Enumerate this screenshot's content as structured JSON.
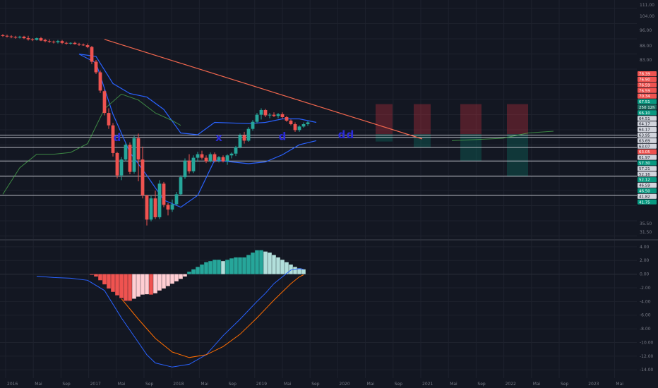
{
  "theme": {
    "background": "#131722",
    "grid": "#1e222d",
    "axis_text": "#787b86",
    "up": "#26a69a",
    "down": "#ef5350",
    "level_line": "#d1d4dc",
    "trendline": "#f2674e",
    "channel": "#2962ff",
    "sma": "#4caf50",
    "macd_line": "#2962ff",
    "signal_line": "#ff6d00",
    "hist_up_strong": "#26a69a",
    "hist_up_weak": "#b2dfdb",
    "hist_down_strong": "#ef5350",
    "hist_down_weak": "#ffcdd2",
    "loss_box": "#f23645",
    "profit_box": "#089981",
    "signal_mark": "#2b2bd6"
  },
  "chart_data": [
    {
      "type": "candlestick",
      "pane": "price",
      "ylim": [
        31,
        111
      ],
      "y_ticks": [
        "111.00",
        "104.00",
        "96.00",
        "88.00",
        "83.00",
        "35.50",
        "31.50"
      ],
      "x_ticks": [
        "2016",
        "Mai",
        "Sep",
        "2017",
        "Mai",
        "Sep",
        "2018",
        "Mai",
        "Sep",
        "2019",
        "Mai",
        "Sep",
        "2020",
        "Mai",
        "Sep",
        "2021",
        "Mai",
        "Sep",
        "2022",
        "Mai",
        "Sep",
        "2023",
        "Mai"
      ],
      "price_labels": [
        {
          "text": "78.39",
          "kind": "loss"
        },
        {
          "text": "76.90",
          "kind": "loss"
        },
        {
          "text": "76.59",
          "kind": "loss"
        },
        {
          "text": "76.59",
          "kind": "loss"
        },
        {
          "text": "70.34",
          "kind": "loss"
        },
        {
          "text": "67.51",
          "kind": "up"
        },
        {
          "text": "250 12h",
          "kind": "last"
        },
        {
          "text": "66.10",
          "kind": "up"
        },
        {
          "text": "64.51",
          "kind": "neutral"
        },
        {
          "text": "64.17",
          "kind": "neutral"
        },
        {
          "text": "64.17",
          "kind": "neutral"
        },
        {
          "text": "63.95",
          "kind": "neutral"
        },
        {
          "text": "63.69",
          "kind": "neutral"
        },
        {
          "text": "63.07",
          "kind": "neutral"
        },
        {
          "text": "63.05",
          "kind": "down"
        },
        {
          "text": "61.97",
          "kind": "neutral"
        },
        {
          "text": "57.30",
          "kind": "up"
        },
        {
          "text": "57.21",
          "kind": "neutral"
        },
        {
          "text": "52.16",
          "kind": "neutral"
        },
        {
          "text": "52.12",
          "kind": "up"
        },
        {
          "text": "46.59",
          "kind": "neutral"
        },
        {
          "text": "46.50",
          "kind": "up"
        },
        {
          "text": "41.82",
          "kind": "neutral"
        },
        {
          "text": "41.75",
          "kind": "up"
        }
      ],
      "candles": [
        {
          "o": 100.0,
          "h": 100.4,
          "l": 99.4,
          "c": 99.8
        },
        {
          "o": 99.8,
          "h": 100.2,
          "l": 99.2,
          "c": 99.6
        },
        {
          "o": 99.6,
          "h": 100.0,
          "l": 99.0,
          "c": 99.4
        },
        {
          "o": 99.4,
          "h": 99.8,
          "l": 98.8,
          "c": 99.2
        },
        {
          "o": 99.2,
          "h": 99.8,
          "l": 98.9,
          "c": 99.5
        },
        {
          "o": 99.5,
          "h": 99.8,
          "l": 98.7,
          "c": 99.0
        },
        {
          "o": 99.0,
          "h": 99.8,
          "l": 98.2,
          "c": 98.6
        },
        {
          "o": 98.6,
          "h": 99.0,
          "l": 98.0,
          "c": 98.4
        },
        {
          "o": 98.4,
          "h": 99.2,
          "l": 98.2,
          "c": 99.0
        },
        {
          "o": 99.0,
          "h": 99.4,
          "l": 98.0,
          "c": 98.2
        },
        {
          "o": 98.4,
          "h": 98.8,
          "l": 97.6,
          "c": 98.0
        },
        {
          "o": 98.0,
          "h": 98.6,
          "l": 97.4,
          "c": 97.8
        },
        {
          "o": 97.8,
          "h": 98.2,
          "l": 97.2,
          "c": 97.6
        },
        {
          "o": 97.6,
          "h": 98.4,
          "l": 97.2,
          "c": 98.0
        },
        {
          "o": 98.0,
          "h": 98.4,
          "l": 97.0,
          "c": 97.4
        },
        {
          "o": 97.4,
          "h": 97.8,
          "l": 96.8,
          "c": 97.2
        },
        {
          "o": 97.2,
          "h": 97.6,
          "l": 96.8,
          "c": 97.4
        },
        {
          "o": 97.4,
          "h": 97.8,
          "l": 96.8,
          "c": 97.0
        },
        {
          "o": 97.0,
          "h": 97.4,
          "l": 96.4,
          "c": 96.8
        },
        {
          "o": 96.8,
          "h": 97.2,
          "l": 96.4,
          "c": 96.6
        },
        {
          "o": 96.6,
          "h": 97.2,
          "l": 95.6,
          "c": 96.0
        },
        {
          "o": 96.0,
          "h": 96.4,
          "l": 90.2,
          "c": 91.0
        },
        {
          "o": 91.0,
          "h": 91.6,
          "l": 86.8,
          "c": 87.4
        },
        {
          "o": 87.4,
          "h": 88.0,
          "l": 80.4,
          "c": 81.2
        },
        {
          "o": 81.0,
          "h": 81.6,
          "l": 72.8,
          "c": 73.6
        },
        {
          "o": 73.6,
          "h": 75.2,
          "l": 68.2,
          "c": 69.4
        },
        {
          "o": 69.4,
          "h": 70.2,
          "l": 58.8,
          "c": 60.0
        },
        {
          "o": 60.0,
          "h": 60.4,
          "l": 51.4,
          "c": 52.4
        },
        {
          "o": 52.4,
          "h": 58.6,
          "l": 50.8,
          "c": 57.8
        },
        {
          "o": 57.8,
          "h": 63.4,
          "l": 57.2,
          "c": 62.8
        },
        {
          "o": 62.8,
          "h": 63.6,
          "l": 52.8,
          "c": 53.6
        },
        {
          "o": 53.6,
          "h": 65.8,
          "l": 53.0,
          "c": 65.0
        },
        {
          "o": 65.0,
          "h": 66.6,
          "l": 50.4,
          "c": 57.8
        },
        {
          "o": 57.8,
          "h": 62.2,
          "l": 44.6,
          "c": 45.6
        },
        {
          "o": 45.6,
          "h": 45.8,
          "l": 35.4,
          "c": 37.4
        },
        {
          "o": 37.4,
          "h": 45.4,
          "l": 36.8,
          "c": 44.6
        },
        {
          "o": 44.6,
          "h": 47.2,
          "l": 37.6,
          "c": 38.2
        },
        {
          "o": 38.2,
          "h": 50.8,
          "l": 37.6,
          "c": 49.6
        },
        {
          "o": 49.6,
          "h": 50.2,
          "l": 41.6,
          "c": 42.4
        },
        {
          "o": 42.4,
          "h": 43.0,
          "l": 38.8,
          "c": 40.8
        },
        {
          "o": 40.8,
          "h": 44.2,
          "l": 40.0,
          "c": 42.6
        },
        {
          "o": 42.6,
          "h": 46.8,
          "l": 42.2,
          "c": 46.0
        },
        {
          "o": 46.0,
          "h": 52.4,
          "l": 45.6,
          "c": 51.8
        },
        {
          "o": 51.8,
          "h": 58.2,
          "l": 51.2,
          "c": 57.4
        },
        {
          "o": 57.4,
          "h": 59.6,
          "l": 53.0,
          "c": 53.8
        },
        {
          "o": 53.8,
          "h": 59.2,
          "l": 53.2,
          "c": 58.4
        },
        {
          "o": 58.4,
          "h": 60.4,
          "l": 57.0,
          "c": 59.6
        },
        {
          "o": 59.6,
          "h": 60.8,
          "l": 57.8,
          "c": 58.4
        },
        {
          "o": 58.4,
          "h": 59.2,
          "l": 56.6,
          "c": 57.2
        },
        {
          "o": 57.2,
          "h": 60.2,
          "l": 56.8,
          "c": 59.6
        },
        {
          "o": 59.6,
          "h": 60.2,
          "l": 56.8,
          "c": 57.4
        },
        {
          "o": 57.4,
          "h": 59.0,
          "l": 56.8,
          "c": 58.6
        },
        {
          "o": 58.6,
          "h": 59.2,
          "l": 56.8,
          "c": 57.2
        },
        {
          "o": 57.2,
          "h": 59.6,
          "l": 56.0,
          "c": 59.2
        },
        {
          "o": 59.2,
          "h": 60.2,
          "l": 58.2,
          "c": 59.8
        },
        {
          "o": 59.8,
          "h": 62.4,
          "l": 59.0,
          "c": 62.0
        },
        {
          "o": 62.0,
          "h": 66.6,
          "l": 61.6,
          "c": 66.0
        },
        {
          "o": 66.0,
          "h": 67.2,
          "l": 63.2,
          "c": 64.2
        },
        {
          "o": 64.2,
          "h": 68.8,
          "l": 63.8,
          "c": 68.2
        },
        {
          "o": 68.2,
          "h": 71.2,
          "l": 67.6,
          "c": 70.6
        },
        {
          "o": 70.6,
          "h": 73.6,
          "l": 70.0,
          "c": 73.0
        },
        {
          "o": 73.0,
          "h": 75.2,
          "l": 71.4,
          "c": 74.6
        },
        {
          "o": 74.6,
          "h": 75.0,
          "l": 72.2,
          "c": 72.8
        },
        {
          "o": 72.8,
          "h": 73.6,
          "l": 71.8,
          "c": 73.0
        },
        {
          "o": 73.0,
          "h": 73.8,
          "l": 72.2,
          "c": 72.6
        },
        {
          "o": 72.6,
          "h": 73.6,
          "l": 71.8,
          "c": 73.2
        },
        {
          "o": 73.2,
          "h": 73.8,
          "l": 71.6,
          "c": 72.2
        },
        {
          "o": 72.2,
          "h": 72.6,
          "l": 70.6,
          "c": 71.0
        },
        {
          "o": 71.0,
          "h": 71.4,
          "l": 69.4,
          "c": 69.8
        },
        {
          "o": 69.8,
          "h": 70.4,
          "l": 67.2,
          "c": 67.8
        },
        {
          "o": 67.8,
          "h": 69.4,
          "l": 67.2,
          "c": 69.0
        },
        {
          "o": 69.0,
          "h": 70.4,
          "l": 68.6,
          "c": 69.8
        },
        {
          "o": 69.8,
          "h": 70.8,
          "l": 69.2,
          "c": 70.4
        }
      ],
      "trendline": {
        "from": [
          24,
          98.6
        ],
        "to": [
          99,
          64.8
        ]
      },
      "levels": [
        66.1,
        65.3,
        61.9,
        57.3,
        52.1,
        45.6
      ],
      "channel_upper": [
        [
          18,
          93.6
        ],
        [
          22,
          92.8
        ],
        [
          26,
          83.6
        ],
        [
          30,
          80.2
        ],
        [
          34,
          79.0
        ],
        [
          38,
          74.8
        ],
        [
          42,
          66.8
        ],
        [
          46,
          66.2
        ],
        [
          50,
          70.4
        ],
        [
          54,
          70.2
        ],
        [
          58,
          70.0
        ],
        [
          62,
          70.4
        ],
        [
          66,
          71.6
        ],
        [
          70,
          71.6
        ],
        [
          74,
          70.4
        ]
      ],
      "channel_lower": [
        [
          18,
          93.6
        ],
        [
          22,
          90.6
        ],
        [
          26,
          73.2
        ],
        [
          30,
          60.2
        ],
        [
          34,
          52.4
        ],
        [
          38,
          44.0
        ],
        [
          42,
          41.6
        ],
        [
          46,
          45.6
        ],
        [
          50,
          57.6
        ],
        [
          54,
          57.0
        ],
        [
          58,
          56.4
        ],
        [
          62,
          57.0
        ],
        [
          66,
          59.4
        ],
        [
          70,
          62.8
        ],
        [
          74,
          64.2
        ]
      ],
      "sma": [
        [
          0,
          46.0
        ],
        [
          4,
          55.0
        ],
        [
          8,
          59.6
        ],
        [
          12,
          59.6
        ],
        [
          16,
          60.2
        ],
        [
          20,
          63.2
        ],
        [
          24,
          75.0
        ],
        [
          28,
          80.0
        ],
        [
          32,
          78.0
        ],
        [
          36,
          73.6
        ],
        [
          40,
          71.0
        ],
        [
          42,
          69.4
        ]
      ],
      "sma_projection": [
        [
          106,
          64.2
        ],
        [
          112,
          64.6
        ],
        [
          118,
          65.0
        ],
        [
          124,
          66.8
        ],
        [
          130,
          67.4
        ]
      ],
      "signal_marks": [
        {
          "i": 27,
          "y": 65.2,
          "symbol": "d"
        },
        {
          "i": 51,
          "y": 65.2,
          "symbol": "x"
        },
        {
          "i": 66,
          "y": 65.6,
          "symbol": "d"
        },
        {
          "i": 80,
          "y": 66.2,
          "symbol": "d"
        },
        {
          "i": 82,
          "y": 66.2,
          "symbol": "d"
        }
      ],
      "position_boxes": [
        {
          "x0": 88,
          "x1": 92,
          "entry": 66.4,
          "stop": 76.6,
          "target": 63.9
        },
        {
          "x0": 97,
          "x1": 101,
          "entry": 66.4,
          "stop": 76.6,
          "target": 61.9
        },
        {
          "x0": 108,
          "x1": 113,
          "entry": 66.4,
          "stop": 76.6,
          "target": 57.3
        },
        {
          "x0": 119,
          "x1": 124,
          "entry": 66.4,
          "stop": 76.6,
          "target": 52.1
        }
      ],
      "x_domain": [
        0,
        150
      ]
    },
    {
      "type": "bar",
      "pane": "macd",
      "ylim": [
        -14.6,
        4.6
      ],
      "y_ticks": [
        4.0,
        2.0,
        0.0,
        -2.0,
        -4.0,
        -6.0,
        -8.0,
        -10.0,
        -12.0,
        -14.0
      ],
      "y_tick_labels": [
        "4.00",
        "2.00",
        "0.00",
        "-2.00",
        "-4.00",
        "-6.00",
        "-8.00",
        "-10.00",
        "-12.00",
        "-14.00"
      ],
      "histogram": [
        {
          "i": 21,
          "v": -0.1
        },
        {
          "i": 22,
          "v": -0.35
        },
        {
          "i": 23,
          "v": -0.9
        },
        {
          "i": 24,
          "v": -1.5
        },
        {
          "i": 25,
          "v": -2.1
        },
        {
          "i": 26,
          "v": -2.6
        },
        {
          "i": 27,
          "v": -3.1
        },
        {
          "i": 28,
          "v": -3.5
        },
        {
          "i": 29,
          "v": -3.9
        },
        {
          "i": 30,
          "v": -3.9
        },
        {
          "i": 31,
          "v": -3.6
        },
        {
          "i": 32,
          "v": -3.3
        },
        {
          "i": 33,
          "v": -3.0
        },
        {
          "i": 34,
          "v": -2.95
        },
        {
          "i": 35,
          "v": -3.0
        },
        {
          "i": 36,
          "v": -2.8
        },
        {
          "i": 37,
          "v": -2.4
        },
        {
          "i": 38,
          "v": -2.1
        },
        {
          "i": 39,
          "v": -1.75
        },
        {
          "i": 40,
          "v": -1.4
        },
        {
          "i": 41,
          "v": -1.05
        },
        {
          "i": 42,
          "v": -0.7
        },
        {
          "i": 43,
          "v": -0.35
        },
        {
          "i": 44,
          "v": 0.35
        },
        {
          "i": 45,
          "v": 0.7
        },
        {
          "i": 46,
          "v": 1.05
        },
        {
          "i": 47,
          "v": 1.4
        },
        {
          "i": 48,
          "v": 1.75
        },
        {
          "i": 49,
          "v": 1.9
        },
        {
          "i": 50,
          "v": 2.1
        },
        {
          "i": 51,
          "v": 2.1
        },
        {
          "i": 52,
          "v": 1.9
        },
        {
          "i": 53,
          "v": 2.1
        },
        {
          "i": 54,
          "v": 2.3
        },
        {
          "i": 55,
          "v": 2.45
        },
        {
          "i": 56,
          "v": 2.45
        },
        {
          "i": 57,
          "v": 2.45
        },
        {
          "i": 58,
          "v": 2.8
        },
        {
          "i": 59,
          "v": 3.15
        },
        {
          "i": 60,
          "v": 3.5
        },
        {
          "i": 61,
          "v": 3.5
        },
        {
          "i": 62,
          "v": 3.3
        },
        {
          "i": 63,
          "v": 3.15
        },
        {
          "i": 64,
          "v": 2.8
        },
        {
          "i": 65,
          "v": 2.45
        },
        {
          "i": 66,
          "v": 2.1
        },
        {
          "i": 67,
          "v": 1.75
        },
        {
          "i": 68,
          "v": 1.4
        },
        {
          "i": 69,
          "v": 1.05
        },
        {
          "i": 70,
          "v": 0.85
        },
        {
          "i": 71,
          "v": 0.7
        }
      ],
      "macd_line": [
        [
          8,
          -0.3
        ],
        [
          12,
          -0.5
        ],
        [
          16,
          -0.6
        ],
        [
          20,
          -0.9
        ],
        [
          24,
          -2.4
        ],
        [
          28,
          -6.4
        ],
        [
          32,
          -10.0
        ],
        [
          34,
          -11.8
        ],
        [
          36,
          -13.0
        ],
        [
          40,
          -13.6
        ],
        [
          44,
          -13.2
        ],
        [
          48,
          -11.8
        ],
        [
          52,
          -9.0
        ],
        [
          56,
          -6.6
        ],
        [
          60,
          -4.0
        ],
        [
          62,
          -2.8
        ],
        [
          64,
          -1.4
        ],
        [
          66,
          -0.4
        ],
        [
          68,
          0.6
        ],
        [
          70,
          0.8
        ],
        [
          71,
          0.7
        ]
      ],
      "signal_line": [
        [
          28,
          -3.6
        ],
        [
          32,
          -6.6
        ],
        [
          36,
          -9.4
        ],
        [
          40,
          -11.4
        ],
        [
          44,
          -12.2
        ],
        [
          48,
          -11.8
        ],
        [
          52,
          -10.6
        ],
        [
          56,
          -8.8
        ],
        [
          60,
          -6.4
        ],
        [
          64,
          -3.8
        ],
        [
          68,
          -1.4
        ],
        [
          70,
          -0.4
        ],
        [
          71,
          -0.1
        ]
      ]
    }
  ]
}
